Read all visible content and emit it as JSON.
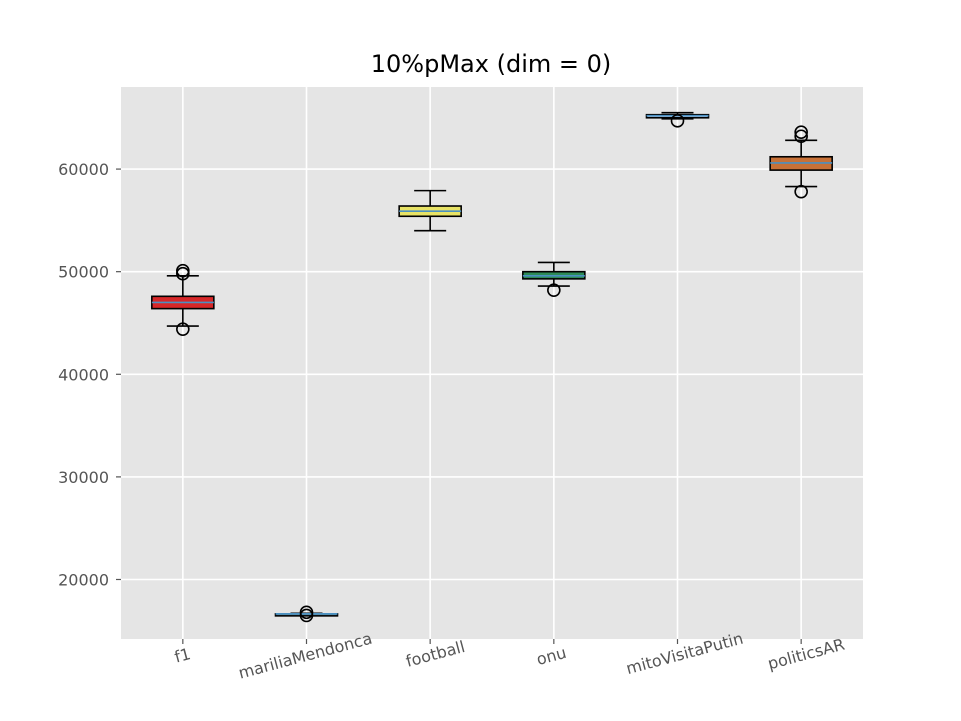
{
  "chart_data": {
    "type": "box",
    "title": "10%pMax (dim = 0)",
    "xlabel": "",
    "ylabel": "",
    "ylim": [
      14200,
      68000
    ],
    "yticks": [
      20000,
      30000,
      40000,
      50000,
      60000
    ],
    "ytick_labels": [
      "20000",
      "30000",
      "40000",
      "50000",
      "60000"
    ],
    "grid": true,
    "categories": [
      "f1",
      "mariliaMendonca",
      "football",
      "onu",
      "mitoVisitaPutin",
      "politicsAR"
    ],
    "boxes": [
      {
        "label": "f1",
        "whisker_low": 44700,
        "q1": 46400,
        "median": 47000,
        "q3": 47600,
        "whisker_high": 49600,
        "outliers": [
          44400,
          49800,
          50100
        ],
        "color": "#d62728"
      },
      {
        "label": "mariliaMendonca",
        "whisker_low": 16600,
        "q1": 16650,
        "median": 16650,
        "q3": 16650,
        "whisker_high": 16700,
        "outliers": [
          16500,
          16800
        ],
        "color": "#87ceeb"
      },
      {
        "label": "football",
        "whisker_low": 54000,
        "q1": 55400,
        "median": 55900,
        "q3": 56400,
        "whisker_high": 57900,
        "outliers": [],
        "color": "#e8e366"
      },
      {
        "label": "onu",
        "whisker_low": 48600,
        "q1": 49300,
        "median": 49600,
        "q3": 50000,
        "whisker_high": 50900,
        "outliers": [
          48200
        ],
        "color": "#2e8b57"
      },
      {
        "label": "mitoVisitaPutin",
        "whisker_low": 64900,
        "q1": 65000,
        "median": 65200,
        "q3": 65300,
        "whisker_high": 65500,
        "outliers": [
          64700
        ],
        "color": "#b0c4de"
      },
      {
        "label": "politicsAR",
        "whisker_low": 58300,
        "q1": 59900,
        "median": 60600,
        "q3": 61200,
        "whisker_high": 62800,
        "outliers": [
          57800,
          63200,
          63600
        ],
        "color": "#c87137"
      }
    ]
  }
}
